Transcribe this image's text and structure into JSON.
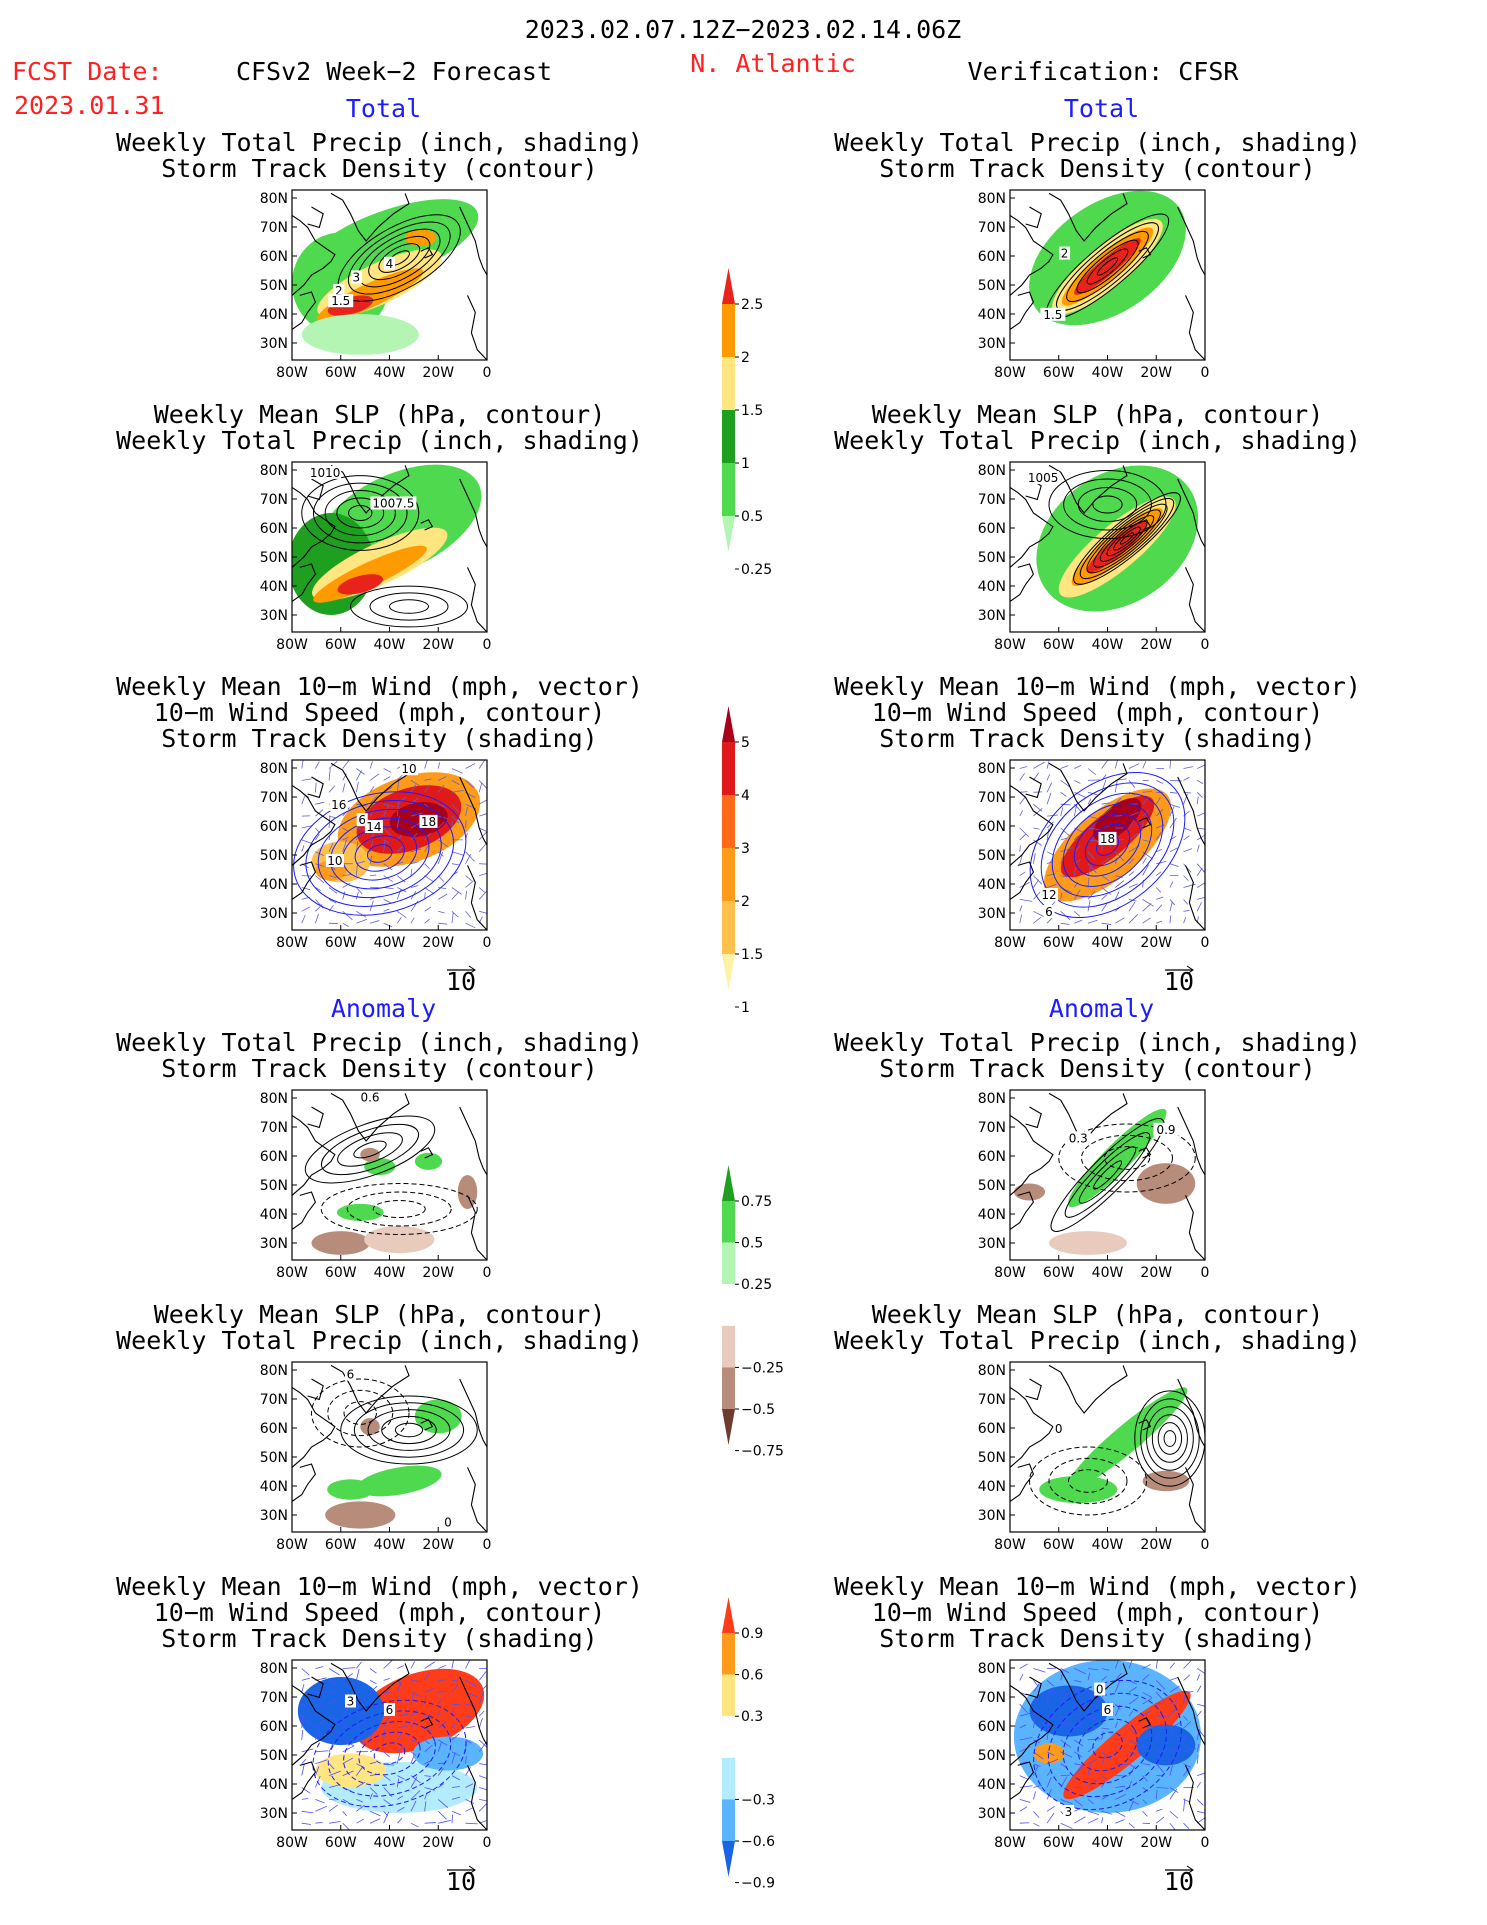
{
  "header": {
    "date_range": "2023.02.07.12Z−2023.02.14.06Z",
    "fcst_date_label": "FCST Date:",
    "fcst_date_value": "2023.01.31",
    "model_title": "CFSv2 Week−2 Forecast",
    "region": "N. Atlantic",
    "verification_title": "Verification: CFSR"
  },
  "sections": {
    "total": "Total",
    "anomaly": "Anomaly"
  },
  "panel_titles": {
    "precip_storm": [
      "Weekly Total Precip (inch, shading)",
      "Storm Track Density (contour)"
    ],
    "slp_precip": [
      "Weekly Mean SLP (hPa, contour)",
      "Weekly Total Precip (inch, shading)"
    ],
    "wind_storm": [
      "Weekly Mean 10−m Wind (mph, vector)",
      "10−m Wind Speed (mph, contour)",
      "Storm Track Density (shading)"
    ]
  },
  "axes": {
    "lat_ticks": [
      "80N",
      "70N",
      "60N",
      "50N",
      "40N",
      "30N"
    ],
    "lon_ticks": [
      "80W",
      "60W",
      "40W",
      "20W",
      "0"
    ]
  },
  "vector_ref": "10",
  "colorbars": [
    {
      "id": "precip-total",
      "labels": [
        "2.5",
        "2",
        "1.5",
        "1",
        "0.5",
        "0.25"
      ],
      "colors": [
        "#e8231c",
        "#ff9b00",
        "#ffe680",
        "#1f9f1f",
        "#4fd94f",
        "#b4f5b4"
      ]
    },
    {
      "id": "storm-total",
      "labels": [
        "5",
        "4",
        "3",
        "2",
        "1.5",
        "1"
      ],
      "colors": [
        "#a8001c",
        "#e01a1a",
        "#ff6a1a",
        "#ff9b1a",
        "#ffc04d",
        "#fff2a6"
      ]
    },
    {
      "id": "precip-anom",
      "labels": [
        "0.75",
        "0.5",
        "0.25",
        "−0.25",
        "−0.5",
        "−0.75"
      ],
      "colors": [
        "#1f9f1f",
        "#4fd94f",
        "#b4f5b4",
        "#ffffff",
        "#e8cbbd",
        "#b88c7a",
        "#6e3c2c"
      ]
    },
    {
      "id": "storm-anom",
      "labels": [
        "0.9",
        "0.6",
        "0.3",
        "−0.3",
        "−0.6",
        "−0.9"
      ],
      "colors": [
        "#ff3c1a",
        "#ff9b1a",
        "#ffe680",
        "#ffffff",
        "#b4ecff",
        "#5ab4ff",
        "#1a64e6"
      ]
    }
  ],
  "panels": [
    {
      "id": "fc-total-precip",
      "labels": [
        {
          "t": "4"
        },
        {
          "t": "3"
        },
        {
          "t": "2"
        },
        {
          "t": "1.5"
        }
      ]
    },
    {
      "id": "vf-total-precip",
      "labels": [
        {
          "t": "2"
        },
        {
          "t": "1.5"
        }
      ]
    },
    {
      "id": "fc-total-slp",
      "labels": [
        {
          "t": "1010"
        },
        {
          "t": "1007.5"
        }
      ]
    },
    {
      "id": "vf-total-slp",
      "labels": [
        {
          "t": "1005"
        }
      ]
    },
    {
      "id": "fc-total-wind",
      "labels": [
        {
          "t": "10"
        },
        {
          "t": "16"
        },
        {
          "t": "6"
        },
        {
          "t": "14"
        },
        {
          "t": "18"
        },
        {
          "t": "10"
        }
      ]
    },
    {
      "id": "vf-total-wind",
      "labels": [
        {
          "t": "18"
        },
        {
          "t": "12"
        },
        {
          "t": "6"
        }
      ]
    },
    {
      "id": "fc-anom-precip",
      "labels": [
        {
          "t": "0.6"
        }
      ]
    },
    {
      "id": "vf-anom-precip",
      "labels": [
        {
          "t": "0.9"
        },
        {
          "t": "0.3"
        }
      ]
    },
    {
      "id": "fc-anom-slp",
      "labels": [
        {
          "t": "6"
        },
        {
          "t": "0"
        }
      ]
    },
    {
      "id": "vf-anom-slp",
      "labels": [
        {
          "t": "0"
        }
      ]
    },
    {
      "id": "fc-anom-wind",
      "labels": [
        {
          "t": "3"
        },
        {
          "t": "6"
        }
      ]
    },
    {
      "id": "vf-anom-wind",
      "labels": [
        {
          "t": "6"
        },
        {
          "t": "0"
        },
        {
          "t": "3"
        }
      ]
    }
  ]
}
